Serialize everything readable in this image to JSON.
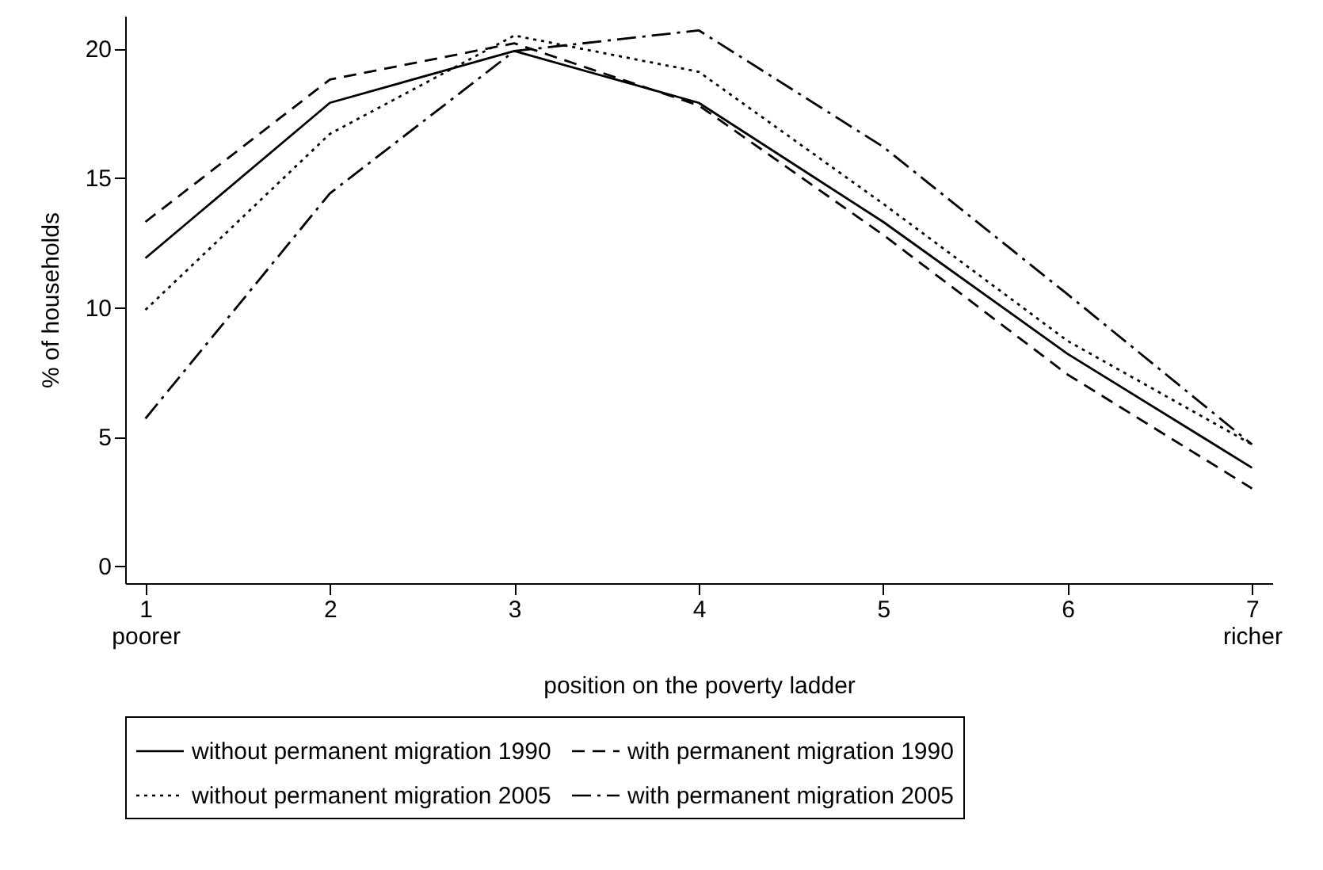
{
  "chart_data": {
    "type": "line",
    "xlabel": "position on the poverty ladder",
    "ylabel": "% of households",
    "x": [
      1,
      2,
      3,
      4,
      5,
      6,
      7
    ],
    "series": [
      {
        "name": "without permanent migration 1990",
        "color": "#000000",
        "line_style": "solid",
        "values": [
          11.9,
          17.9,
          19.9,
          17.9,
          13.3,
          8.2,
          3.8
        ]
      },
      {
        "name": "with permanent migration 1990",
        "color": "#000000",
        "line_style": "dashed",
        "values": [
          13.3,
          18.8,
          20.2,
          17.8,
          12.8,
          7.4,
          3.0
        ]
      },
      {
        "name": "without permanent migration 2005",
        "color": "#000000",
        "line_style": "dotted",
        "values": [
          9.9,
          16.7,
          20.5,
          19.1,
          14.0,
          8.7,
          4.7
        ]
      },
      {
        "name": "with permanent migration 2005",
        "color": "#000000",
        "line_style": "dashdot",
        "values": [
          5.7,
          14.4,
          19.9,
          20.7,
          16.2,
          10.5,
          4.7
        ]
      }
    ],
    "xlim": [
      0.89,
      7.11
    ],
    "ylim": [
      -0.66,
      21.26
    ],
    "xticks": [
      {
        "value": 1,
        "label": "1\npoorer"
      },
      2,
      3,
      4,
      5,
      6,
      {
        "value": 7,
        "label": "7\nricher"
      }
    ],
    "yticks": [
      0,
      5,
      10,
      15,
      20
    ],
    "grid": false,
    "legend": "bottom",
    "marker": "none"
  }
}
